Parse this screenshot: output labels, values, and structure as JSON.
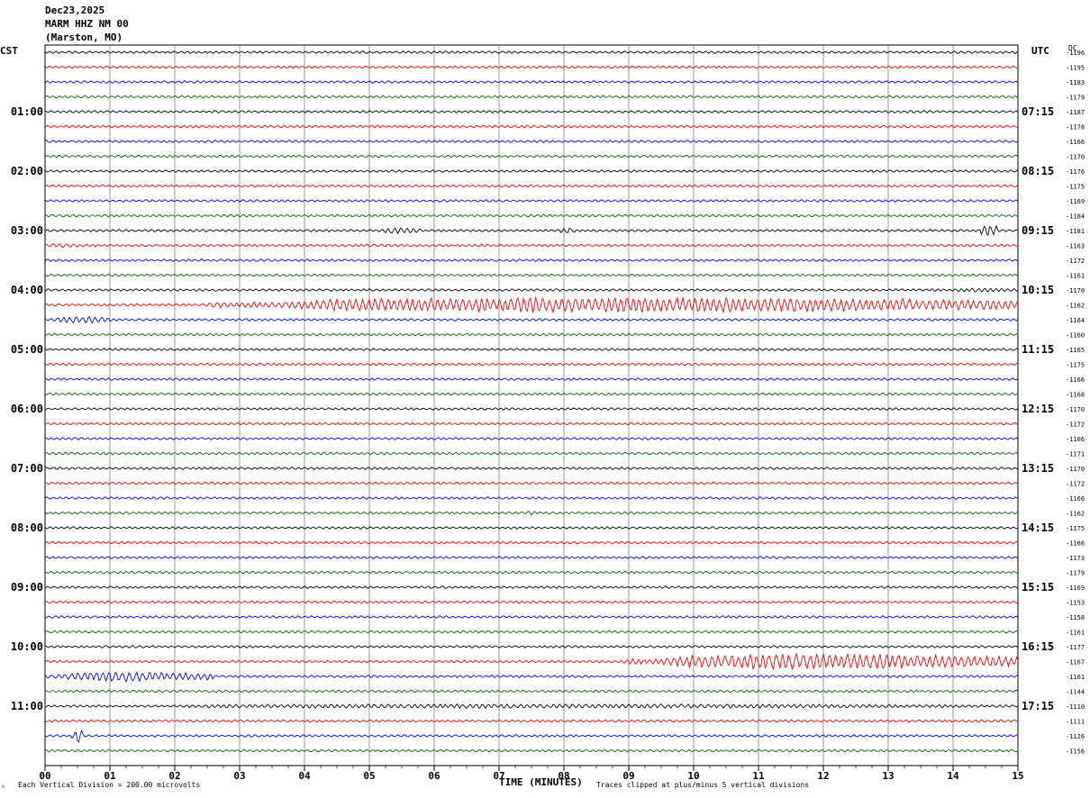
{
  "header": {
    "date": "Dec23,2025",
    "station": "MARM HHZ NM 00",
    "location": "(Marston, MO)"
  },
  "left_tz": "CST",
  "right_tz": "UTC",
  "right_col_label": "DC",
  "footer": {
    "scale_note": "Each Vertical Division =  200.00 microvolts",
    "clip_note": "Traces clipped at plus/minus 5 vertical divisions",
    "corner_mark": "ᴬ"
  },
  "colors": {
    "trace_cycle": [
      "#000000",
      "#ff0000",
      "#0000ff",
      "#006400"
    ],
    "grid": "#000000",
    "background": "#ffffff"
  },
  "chart_data": {
    "type": "line",
    "title": "",
    "xlabel": "TIME (MINUTES)",
    "ylabel": "",
    "x_range": [
      0,
      15
    ],
    "x_tick_labels": [
      "00",
      "01",
      "02",
      "03",
      "04",
      "05",
      "06",
      "07",
      "08",
      "09",
      "10",
      "11",
      "12",
      "13",
      "14",
      "15"
    ],
    "rows_per_hour": 4,
    "left_hour_labels": [
      "01:00",
      "02:00",
      "03:00",
      "04:00",
      "05:00",
      "06:00",
      "07:00",
      "08:00",
      "09:00",
      "10:00",
      "11:00"
    ],
    "right_hour_labels": [
      "07:15",
      "08:15",
      "09:15",
      "10:15",
      "11:15",
      "12:15",
      "13:15",
      "14:15",
      "15:15",
      "16:15",
      "17:15"
    ],
    "dc_offsets": [
      -1196,
      -1195,
      -1183,
      -1179,
      -1187,
      -1178,
      -1166,
      -1170,
      -1176,
      -1175,
      -1169,
      -1184,
      -1181,
      -1163,
      -1172,
      -1161,
      -1170,
      -1162,
      -1164,
      -1160,
      -1165,
      -1175,
      -1166,
      -1168,
      -1170,
      -1172,
      -1166,
      -1171,
      -1170,
      -1172,
      -1166,
      -1162,
      -1175,
      -1166,
      -1173,
      -1179,
      -1169,
      -1153,
      -1158,
      -1161,
      -1177,
      -1167,
      -1161,
      -1144,
      -1110,
      -1111,
      -1126,
      -1156
    ],
    "grid": true,
    "events": [
      {
        "row": 12,
        "x_start": 5.1,
        "x_end": 5.8,
        "amp": 3.5
      },
      {
        "row": 12,
        "x_start": 7.9,
        "x_end": 8.2,
        "amp": 3.5
      },
      {
        "row": 12,
        "x_start": 14.4,
        "x_end": 14.7,
        "amp": 8
      },
      {
        "row": 13,
        "x_start": 0.0,
        "x_end": 0.5,
        "amp": 3
      },
      {
        "row": 16,
        "x_start": 13.8,
        "x_end": 15.0,
        "amp": 2.5
      },
      {
        "row": 17,
        "x_start": 2.5,
        "x_end": 15.0,
        "amp": 9
      },
      {
        "row": 18,
        "x_start": 0.0,
        "x_end": 1.0,
        "amp": 4
      },
      {
        "row": 31,
        "x_start": 7.4,
        "x_end": 7.6,
        "amp": 3
      },
      {
        "row": 41,
        "x_start": 8.9,
        "x_end": 15.0,
        "amp": 9
      },
      {
        "row": 42,
        "x_start": 0.0,
        "x_end": 2.6,
        "amp": 6
      },
      {
        "row": 44,
        "x_start": 0.0,
        "x_end": 15.0,
        "amp": 2.5
      },
      {
        "row": 46,
        "x_start": 0.4,
        "x_end": 0.6,
        "amp": 9
      }
    ]
  }
}
